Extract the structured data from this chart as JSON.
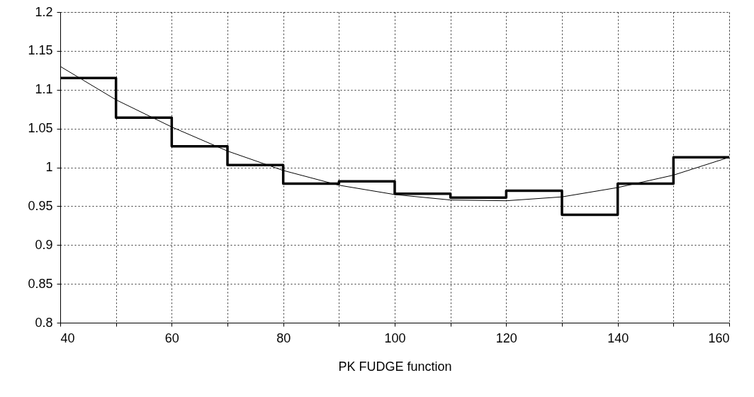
{
  "chart_data": {
    "type": "step",
    "xlabel": "PK FUDGE function",
    "xlim": [
      40,
      160
    ],
    "ylim": [
      0.8,
      1.2
    ],
    "xticks": [
      40,
      {
        "value": 50,
        "label": null
      },
      60,
      {
        "value": 70,
        "label": null
      },
      80,
      {
        "value": 90,
        "label": null
      },
      100,
      {
        "value": 110,
        "label": null
      },
      120,
      {
        "value": 130,
        "label": null
      },
      140,
      {
        "value": 150,
        "label": null
      },
      160
    ],
    "yticks": [
      0.8,
      0.85,
      0.9,
      0.95,
      1,
      1.05,
      1.1,
      1.15,
      1.2
    ],
    "grid": true,
    "line_style": "solid",
    "marker": "none",
    "series": [
      {
        "color": "#000000",
        "x": [
          40,
          50,
          60,
          70,
          80,
          90,
          100,
          110,
          120,
          130,
          140,
          150,
          160
        ],
        "values": [
          1.115,
          1.064,
          1.027,
          1.003,
          0.979,
          0.982,
          0.966,
          0.961,
          0.97,
          0.939,
          0.979,
          1.013,
          1.013
        ]
      },
      {
        "type": "line",
        "color": "#000000",
        "x": [
          40,
          50,
          60,
          70,
          80,
          90,
          100,
          110,
          120,
          130,
          140,
          150,
          160
        ],
        "values": [
          1.13,
          1.087,
          1.052,
          1.021,
          0.996,
          0.977,
          0.965,
          0.958,
          0.957,
          0.962,
          0.974,
          0.99,
          1.013
        ]
      }
    ]
  }
}
